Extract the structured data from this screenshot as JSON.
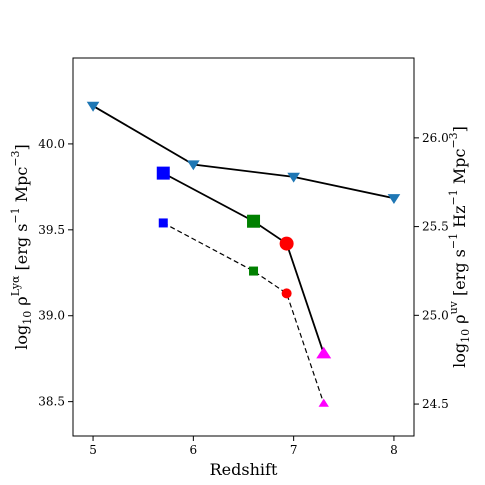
{
  "chart_data": {
    "type": "line",
    "xlabel": "Redshift",
    "ylabel_left": "log10 ρ^Lyα [erg s^-1 Mpc^-3]",
    "ylabel_right": "log10 ρ^uv [erg s^-1 Hz^-1 Mpc^-3]",
    "xlim": [
      4.8,
      8.2
    ],
    "ylim_left": [
      38.3,
      40.5
    ],
    "ylim_right": [
      24.32,
      26.45
    ],
    "x_ticks": [
      5,
      6,
      7,
      8
    ],
    "y_ticks_left": [
      38.5,
      39.0,
      39.5,
      40.0
    ],
    "y_ticks_right": [
      24.5,
      25.0,
      25.5,
      26.0
    ],
    "grid": false,
    "series": [
      {
        "axis": "right",
        "line_style": "solid",
        "points": [
          {
            "x": 5.0,
            "y": 26.18,
            "marker": "triangle-down",
            "color": "#1f77b4",
            "size": 11
          },
          {
            "x": 6.0,
            "y": 25.85,
            "marker": "triangle-down",
            "color": "#1f77b4",
            "size": 11
          },
          {
            "x": 7.0,
            "y": 25.78,
            "marker": "triangle-down",
            "color": "#1f77b4",
            "size": 11
          },
          {
            "x": 8.0,
            "y": 25.66,
            "marker": "triangle-down",
            "color": "#1f77b4",
            "size": 11
          }
        ]
      },
      {
        "axis": "left",
        "line_style": "solid",
        "points": [
          {
            "x": 5.7,
            "y": 39.83,
            "marker": "square",
            "color": "#0000ff",
            "size": 13
          },
          {
            "x": 6.6,
            "y": 39.55,
            "marker": "square",
            "color": "#008000",
            "size": 13
          },
          {
            "x": 6.93,
            "y": 39.42,
            "marker": "circle",
            "color": "#ff0000",
            "size": 14
          },
          {
            "x": 7.3,
            "y": 38.78,
            "marker": "triangle-up",
            "color": "#ff00ff",
            "size": 13
          }
        ]
      },
      {
        "axis": "left",
        "line_style": "dashed",
        "points": [
          {
            "x": 5.7,
            "y": 39.54,
            "marker": "square",
            "color": "#0000ff",
            "size": 9
          },
          {
            "x": 6.6,
            "y": 39.26,
            "marker": "square",
            "color": "#008000",
            "size": 9
          },
          {
            "x": 6.93,
            "y": 39.13,
            "marker": "circle",
            "color": "#ff0000",
            "size": 10
          },
          {
            "x": 7.3,
            "y": 38.49,
            "marker": "triangle-up",
            "color": "#ff00ff",
            "size": 9
          }
        ]
      }
    ]
  }
}
